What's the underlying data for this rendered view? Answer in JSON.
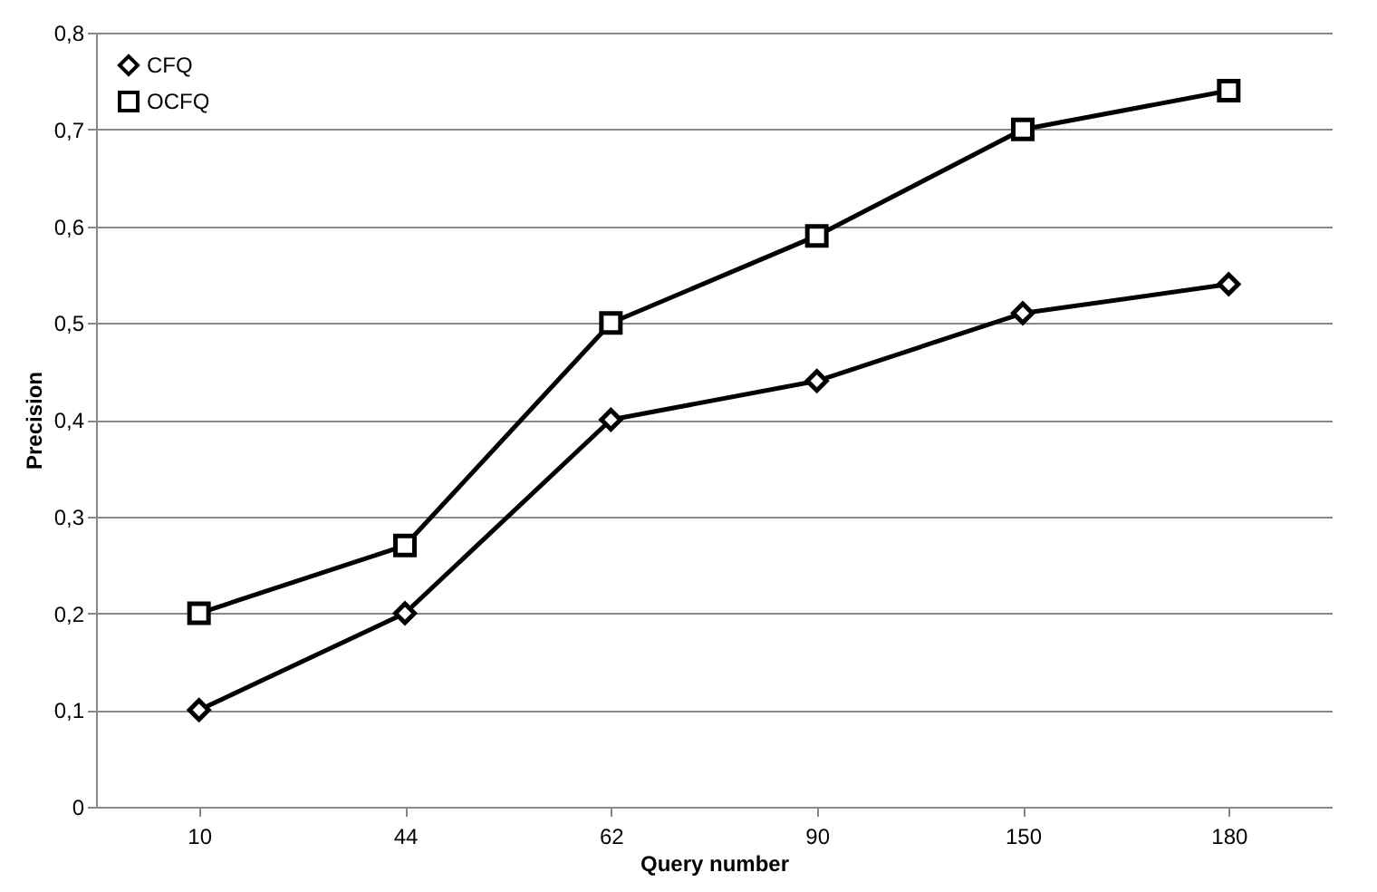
{
  "chart_data": {
    "type": "line",
    "xlabel": "Query number",
    "ylabel": "Precision",
    "categories": [
      "10",
      "44",
      "62",
      "90",
      "150",
      "180"
    ],
    "series": [
      {
        "name": "CFQ",
        "color": "#000000",
        "marker": "diamond",
        "values": [
          0.1,
          0.2,
          0.4,
          0.44,
          0.51,
          0.54
        ]
      },
      {
        "name": "OCFQ",
        "color": "#000000",
        "marker": "square",
        "values": [
          0.2,
          0.27,
          0.5,
          0.59,
          0.7,
          0.74
        ]
      }
    ],
    "ylim": [
      0,
      0.8
    ],
    "yticks": [
      {
        "value": 0,
        "label": "0"
      },
      {
        "value": 0.1,
        "label": "0,1"
      },
      {
        "value": 0.2,
        "label": "0,2"
      },
      {
        "value": 0.3,
        "label": "0,3"
      },
      {
        "value": 0.4,
        "label": "0,4"
      },
      {
        "value": 0.5,
        "label": "0,5"
      },
      {
        "value": 0.6,
        "label": "0,6"
      },
      {
        "value": 0.7,
        "label": "0,7"
      },
      {
        "value": 0.8,
        "label": "0,8"
      }
    ],
    "grid": "y",
    "legend": "top left",
    "line_style": "solid"
  }
}
